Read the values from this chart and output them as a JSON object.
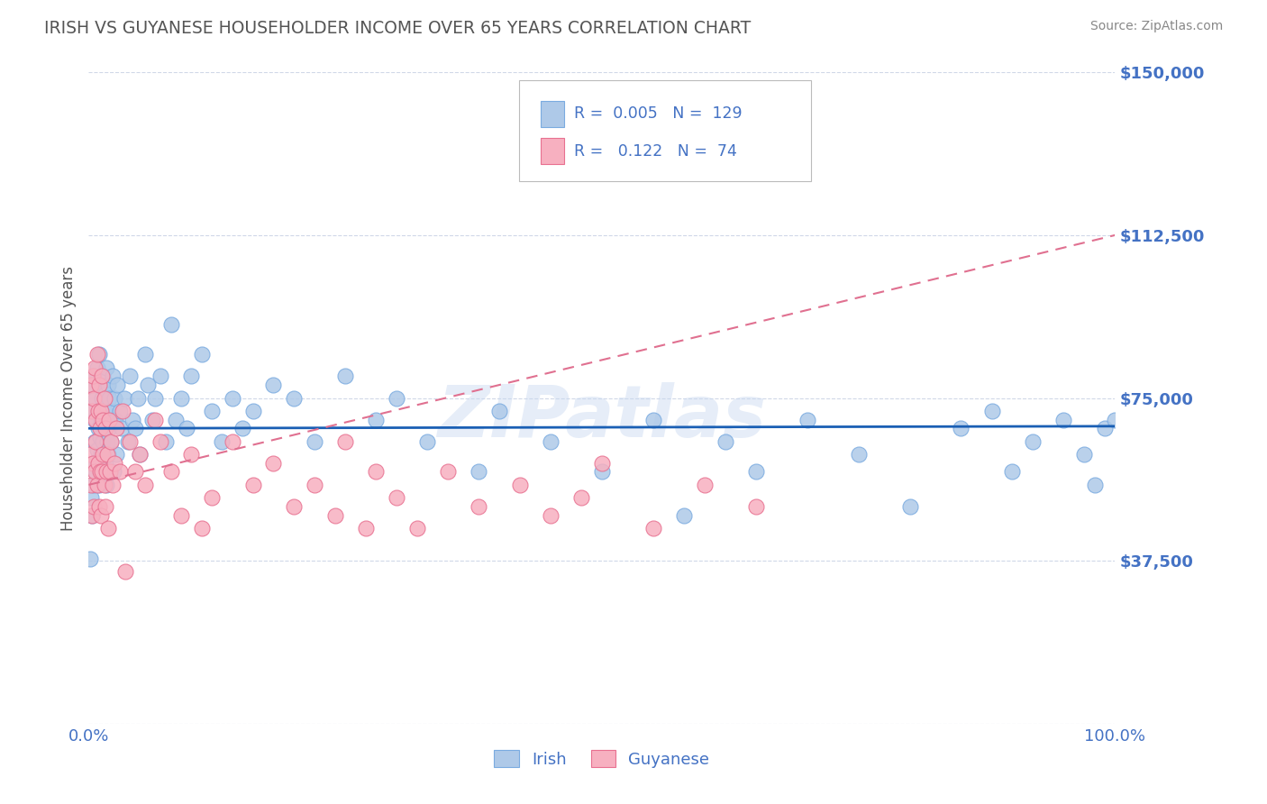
{
  "title": "IRISH VS GUYANESE HOUSEHOLDER INCOME OVER 65 YEARS CORRELATION CHART",
  "source": "Source: ZipAtlas.com",
  "ylabel": "Householder Income Over 65 years",
  "xlim": [
    0,
    1.0
  ],
  "ylim": [
    0,
    150000
  ],
  "ytick_values": [
    0,
    37500,
    75000,
    112500,
    150000
  ],
  "ytick_labels": [
    "",
    "$37,500",
    "$75,000",
    "$112,500",
    "$150,000"
  ],
  "irish_color": "#aec9e8",
  "irish_edge_color": "#7aabe0",
  "guyanese_color": "#f7b0c0",
  "guyanese_edge_color": "#e87090",
  "irish_trend_color": "#1a5fb4",
  "guyanese_trend_color": "#e07090",
  "irish_R": 0.005,
  "irish_N": 129,
  "guyanese_R": 0.122,
  "guyanese_N": 74,
  "irish_trend_y0": 68000,
  "irish_trend_y1": 68500,
  "guyanese_trend_y0": 55000,
  "guyanese_trend_y1": 112500,
  "watermark": "ZIPatlas",
  "background_color": "#ffffff",
  "grid_color": "#d0d8e8",
  "label_color": "#4472c4",
  "title_color": "#555555",
  "irish_x": [
    0.001,
    0.002,
    0.003,
    0.003,
    0.004,
    0.004,
    0.005,
    0.005,
    0.006,
    0.006,
    0.007,
    0.007,
    0.008,
    0.008,
    0.009,
    0.009,
    0.01,
    0.01,
    0.01,
    0.011,
    0.011,
    0.012,
    0.012,
    0.013,
    0.013,
    0.014,
    0.014,
    0.015,
    0.015,
    0.016,
    0.016,
    0.017,
    0.017,
    0.018,
    0.018,
    0.019,
    0.019,
    0.02,
    0.02,
    0.021,
    0.022,
    0.023,
    0.024,
    0.025,
    0.026,
    0.027,
    0.028,
    0.03,
    0.032,
    0.035,
    0.038,
    0.04,
    0.043,
    0.045,
    0.048,
    0.05,
    0.055,
    0.058,
    0.062,
    0.065,
    0.07,
    0.075,
    0.08,
    0.085,
    0.09,
    0.095,
    0.1,
    0.11,
    0.12,
    0.13,
    0.14,
    0.15,
    0.16,
    0.18,
    0.2,
    0.22,
    0.25,
    0.28,
    0.3,
    0.33,
    0.38,
    0.4,
    0.45,
    0.5,
    0.55,
    0.58,
    0.62,
    0.65,
    0.7,
    0.75,
    0.8,
    0.85,
    0.88,
    0.9,
    0.92,
    0.95,
    0.97,
    0.98,
    0.99,
    1.0
  ],
  "irish_y": [
    38000,
    52000,
    48000,
    72000,
    60000,
    78000,
    55000,
    80000,
    65000,
    70000,
    58000,
    75000,
    63000,
    82000,
    68000,
    60000,
    72000,
    55000,
    85000,
    66000,
    78000,
    70000,
    62000,
    75000,
    58000,
    80000,
    65000,
    72000,
    68000,
    60000,
    76000,
    55000,
    82000,
    70000,
    65000,
    78000,
    62000,
    68000,
    75000,
    72000,
    65000,
    80000,
    58000,
    75000,
    70000,
    62000,
    78000,
    72000,
    68000,
    75000,
    65000,
    80000,
    70000,
    68000,
    75000,
    62000,
    85000,
    78000,
    70000,
    75000,
    80000,
    65000,
    92000,
    70000,
    75000,
    68000,
    80000,
    85000,
    72000,
    65000,
    75000,
    68000,
    72000,
    78000,
    75000,
    65000,
    80000,
    70000,
    75000,
    65000,
    58000,
    72000,
    65000,
    58000,
    70000,
    48000,
    65000,
    58000,
    70000,
    62000,
    50000,
    68000,
    72000,
    58000,
    65000,
    70000,
    62000,
    55000,
    68000,
    70000
  ],
  "guyanese_x": [
    0.001,
    0.002,
    0.002,
    0.003,
    0.003,
    0.004,
    0.004,
    0.005,
    0.005,
    0.006,
    0.006,
    0.007,
    0.007,
    0.008,
    0.008,
    0.009,
    0.009,
    0.01,
    0.01,
    0.011,
    0.011,
    0.012,
    0.012,
    0.013,
    0.013,
    0.014,
    0.014,
    0.015,
    0.015,
    0.016,
    0.016,
    0.017,
    0.018,
    0.019,
    0.02,
    0.021,
    0.022,
    0.023,
    0.025,
    0.027,
    0.03,
    0.033,
    0.036,
    0.04,
    0.045,
    0.05,
    0.055,
    0.065,
    0.07,
    0.08,
    0.09,
    0.1,
    0.11,
    0.12,
    0.14,
    0.16,
    0.18,
    0.2,
    0.22,
    0.24,
    0.25,
    0.27,
    0.28,
    0.3,
    0.32,
    0.35,
    0.38,
    0.42,
    0.45,
    0.48,
    0.5,
    0.55,
    0.6,
    0.65
  ],
  "guyanese_y": [
    62000,
    55000,
    78000,
    48000,
    72000,
    60000,
    80000,
    50000,
    75000,
    58000,
    82000,
    65000,
    70000,
    55000,
    85000,
    60000,
    72000,
    50000,
    78000,
    58000,
    68000,
    48000,
    72000,
    58000,
    80000,
    62000,
    70000,
    55000,
    75000,
    50000,
    68000,
    58000,
    62000,
    45000,
    70000,
    58000,
    65000,
    55000,
    60000,
    68000,
    58000,
    72000,
    35000,
    65000,
    58000,
    62000,
    55000,
    70000,
    65000,
    58000,
    48000,
    62000,
    45000,
    52000,
    65000,
    55000,
    60000,
    50000,
    55000,
    48000,
    65000,
    45000,
    58000,
    52000,
    45000,
    58000,
    50000,
    55000,
    48000,
    52000,
    60000,
    45000,
    55000,
    50000
  ]
}
